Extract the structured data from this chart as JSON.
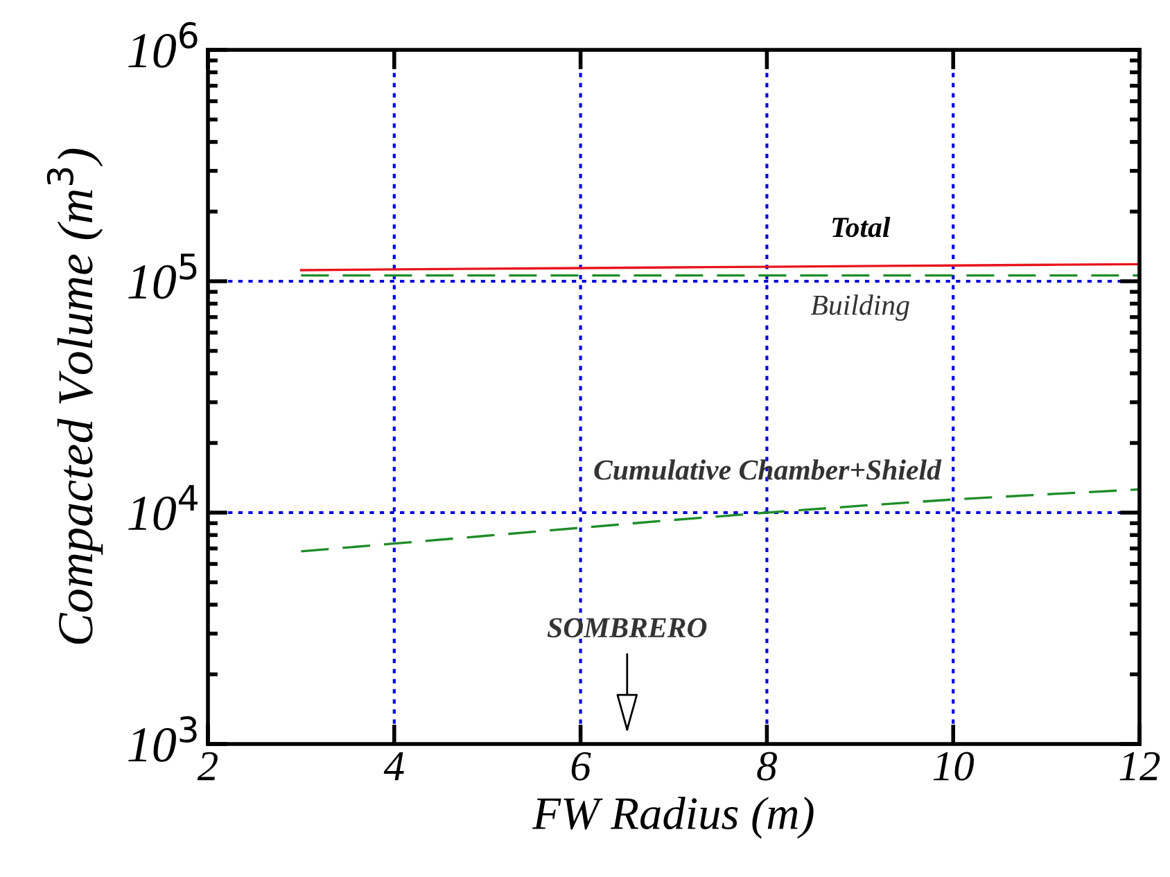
{
  "chart_data": {
    "type": "line",
    "xlabel": "FW Radius (m)",
    "ylabel": "Compacted Volume (m$^{3}$)",
    "log": "y",
    "grid": true,
    "legend": false,
    "xlim": [
      2,
      12
    ],
    "xticks": [
      2,
      4,
      6,
      8,
      10,
      12
    ],
    "ylim": [
      1000,
      1000000
    ],
    "yticks": [
      {
        "value": 1000,
        "label": "10$^{3}$"
      },
      {
        "value": 10000,
        "label": "10$^{4}$"
      },
      {
        "value": 100000,
        "label": "10$^{5}$"
      },
      {
        "value": 1000000,
        "label": "10$^{6}$"
      }
    ],
    "series": [
      {
        "name": "Total",
        "color": "#e8141e",
        "line_style": "solid",
        "x": [
          3,
          4,
          5,
          6,
          7,
          8,
          9,
          10,
          11,
          12
        ],
        "values": [
          111700,
          112500,
          113300,
          114000,
          114800,
          115500,
          116300,
          117000,
          117800,
          118500
        ]
      },
      {
        "name": "Building",
        "color": "#1e8c28",
        "line_style": "dashed",
        "x": [
          3,
          12
        ],
        "values": [
          106000,
          106000
        ]
      },
      {
        "name": "Cumulative Chamber+Shield",
        "color": "#1e8c28",
        "line_style": "dashed",
        "x": [
          3,
          4,
          5,
          6,
          7,
          8,
          9,
          10,
          11,
          12
        ],
        "values": [
          6800,
          7350,
          7950,
          8600,
          9300,
          10000,
          10700,
          11400,
          12000,
          12600
        ]
      }
    ],
    "annotations": [
      "SOMBRERO"
    ]
  }
}
